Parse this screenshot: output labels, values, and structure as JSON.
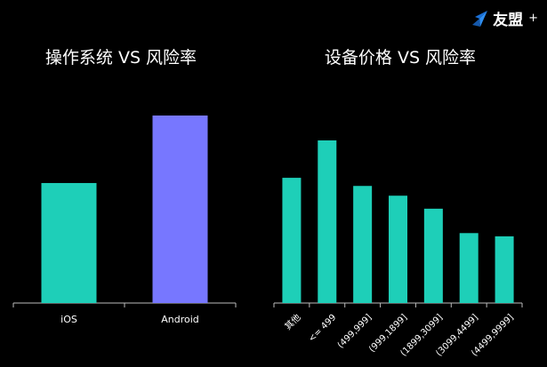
{
  "brand": {
    "name": "友盟",
    "plus": "+",
    "icon": "umeng-logo-icon",
    "color": "#1a6fd4"
  },
  "chart_data": [
    {
      "type": "bar",
      "title": "操作系统 VS 风险率",
      "categories": [
        "iOS",
        "Android"
      ],
      "values": [
        0.64,
        1.0
      ],
      "colors": [
        "#1ecfb8",
        "#7777ff"
      ],
      "ylim": [
        0,
        1.0
      ],
      "grid": false,
      "legend": "none"
    },
    {
      "type": "bar",
      "title": "设备价格 VS 风险率",
      "categories": [
        "其他",
        "<= 499",
        "(499,999]",
        "(999,1899]",
        "(1899,3099]",
        "(3099,4499]",
        "(4499,9999]"
      ],
      "values": [
        0.77,
        1.0,
        0.72,
        0.66,
        0.58,
        0.43,
        0.41
      ],
      "colors": [
        "#1ecfb8"
      ],
      "ylim": [
        0,
        1.0
      ],
      "grid": false,
      "legend": "none"
    }
  ]
}
